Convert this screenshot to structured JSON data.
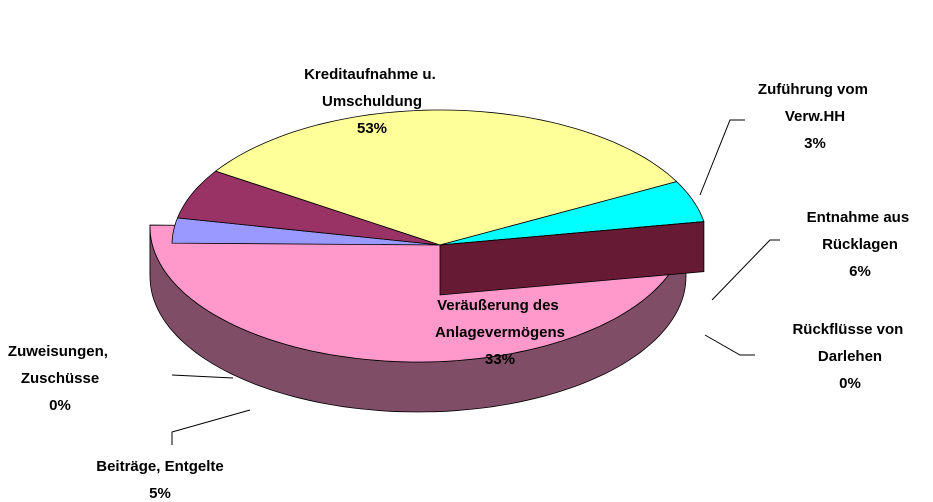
{
  "chart_data": {
    "type": "pie3d",
    "categories": [
      "Kreditaufnahme u. Umschuldung",
      "Zuführung vom Verw.HH",
      "Entnahme aus Rücklagen",
      "Rückflüsse von Darlehen",
      "Veräußerung des Anlagevermögens",
      "Beiträge, Entgelte",
      "Zuweisungen, Zuschüsse"
    ],
    "values": [
      53,
      3,
      6,
      0,
      33,
      5,
      0
    ],
    "value_labels": [
      "53%",
      "3%",
      "6%",
      "0%",
      "33%",
      "5%",
      "0%"
    ],
    "colors": [
      "#ff99cc",
      "#9999ff",
      "#993366",
      "#ccffcc",
      "#ffff99",
      "#00ffff",
      "#cc3366"
    ]
  }
}
